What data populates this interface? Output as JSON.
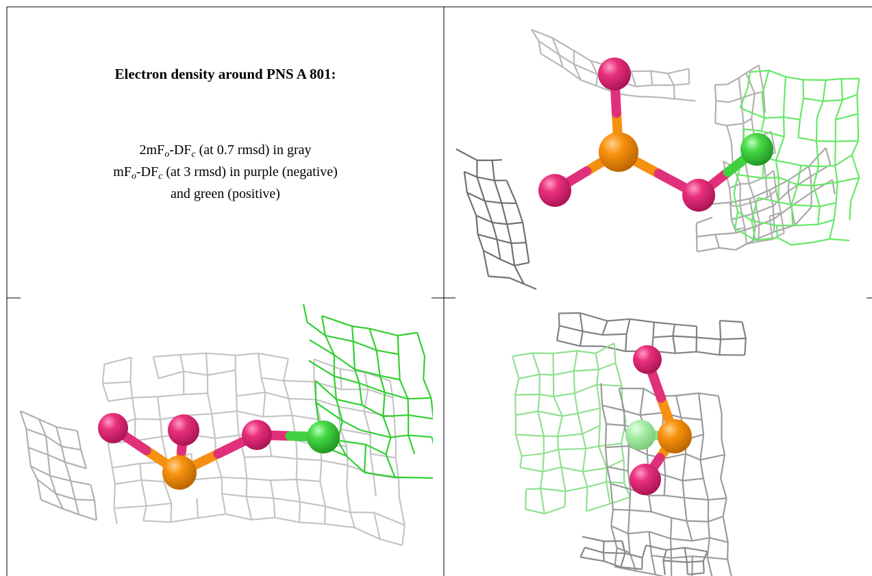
{
  "header": {
    "title": "Electron density around PNS A 801:"
  },
  "legend": {
    "gray_map": [
      "2mF",
      "o",
      "-DF",
      "c",
      " (at 0.7 rmsd) in gray"
    ],
    "diff_map": [
      "mF",
      "o",
      "-DF",
      "c",
      " (at 3 rmsd) in purple (negative)"
    ],
    "diff_map_cont": "and green (positive)"
  }
}
